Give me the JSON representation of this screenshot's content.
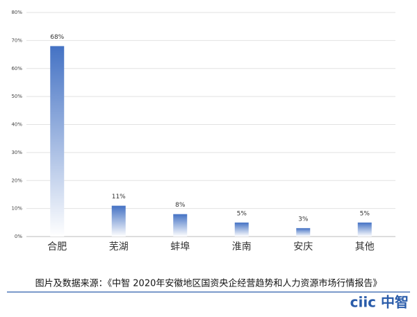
{
  "chart_data": {
    "type": "bar",
    "categories": [
      "合肥",
      "芜湖",
      "蚌埠",
      "淮南",
      "安庆",
      "其他"
    ],
    "values": [
      68,
      11,
      8,
      5,
      3,
      5
    ],
    "value_labels": [
      "68%",
      "11%",
      "8%",
      "5%",
      "3%",
      "5%"
    ],
    "color": "#4472c4",
    "ylim": [
      0,
      80
    ],
    "yticks": [
      {
        "value": 0,
        "label": "0%"
      },
      {
        "value": 10,
        "label": "10%"
      },
      {
        "value": 20,
        "label": "20%"
      },
      {
        "value": 30,
        "label": "30%"
      },
      {
        "value": 40,
        "label": "40%"
      },
      {
        "value": 50,
        "label": "50%"
      },
      {
        "value": 60,
        "label": "60%"
      },
      {
        "value": 70,
        "label": "70%"
      },
      {
        "value": 80,
        "label": "80%"
      }
    ],
    "grid": true,
    "source": "图片及数据来源：《中智 2020年安徽地区国资央企经营趋势和人力资源市场行情报告》",
    "logo": "ciic 中智"
  }
}
